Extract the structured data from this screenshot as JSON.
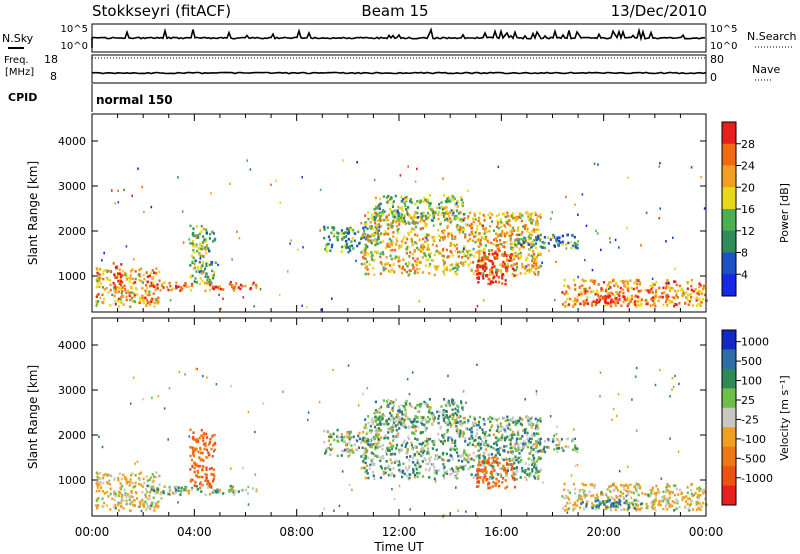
{
  "header": {
    "station": "Stokkseyri (fitACF)",
    "beam": "Beam 15",
    "date": "13/Dec/2010"
  },
  "noise_panel": {
    "left_label": "N.Sky",
    "right_label": "N.Search",
    "ticks": [
      "10^5",
      "10^0"
    ]
  },
  "freq_panel": {
    "left_label_1": "Freq.",
    "left_label_2": "[MHz]",
    "left_ticks": [
      "18",
      "8"
    ],
    "right_label": "Nave",
    "right_ticks": [
      "80",
      "0"
    ]
  },
  "cpid_panel": {
    "label": "CPID",
    "program": "normal 150"
  },
  "colors": {
    "power": [
      "#1428e6",
      "#1e50c8",
      "#2d8c5a",
      "#4caf50",
      "#e8d81c",
      "#f0a020",
      "#f06a14",
      "#e8201c"
    ],
    "velocity": [
      "#1428c8",
      "#2d6ea8",
      "#2e8b57",
      "#6cc04a",
      "#c8c8c0",
      "#f0a020",
      "#f07814",
      "#f05014",
      "#e8201c"
    ]
  },
  "chart_data": [
    {
      "type": "heatmap",
      "quantity": "power",
      "ylabel": "Slant Range [km]",
      "yticks": [
        "1000",
        "2000",
        "3000",
        "4000"
      ],
      "ylim": [
        200,
        4600
      ],
      "xlim": [
        0,
        24
      ],
      "colorbar_label": "Power [dB]",
      "colorbar_ticks": [
        "4",
        "8",
        "12",
        "16",
        "20",
        "24",
        "28"
      ],
      "colorbar_range": [
        0,
        32
      ],
      "regions": [
        {
          "t0": 0.1,
          "t1": 2.6,
          "r0": 300,
          "r1": 1150,
          "v": 22
        },
        {
          "t0": 0.8,
          "t1": 1.2,
          "r0": 600,
          "r1": 1300,
          "v": 30
        },
        {
          "t0": 2.2,
          "t1": 6.5,
          "r0": 650,
          "r1": 850,
          "v": 26
        },
        {
          "t0": 3.8,
          "t1": 4.8,
          "r0": 800,
          "r1": 2100,
          "v": 14
        },
        {
          "t0": 9.0,
          "t1": 11.2,
          "r0": 1500,
          "r1": 2100,
          "v": 12
        },
        {
          "t0": 10.5,
          "t1": 17.5,
          "r0": 1000,
          "r1": 2400,
          "v": 20
        },
        {
          "t0": 11.0,
          "t1": 14.5,
          "r0": 2200,
          "r1": 2800,
          "v": 14
        },
        {
          "t0": 15.0,
          "t1": 16.5,
          "r0": 800,
          "r1": 1500,
          "v": 30
        },
        {
          "t0": 16.5,
          "t1": 19.0,
          "r0": 1600,
          "r1": 1900,
          "v": 10
        },
        {
          "t0": 18.3,
          "t1": 24.0,
          "r0": 300,
          "r1": 900,
          "v": 24
        },
        {
          "t0": 19.0,
          "t1": 21.5,
          "r0": 350,
          "r1": 550,
          "v": 30
        }
      ]
    },
    {
      "type": "heatmap",
      "quantity": "velocity",
      "xlabel": "Time UT",
      "xticks": [
        "00:00",
        "04:00",
        "08:00",
        "12:00",
        "16:00",
        "20:00",
        "00:00"
      ],
      "ylabel": "Slant Range [km]",
      "yticks": [
        "1000",
        "2000",
        "3000",
        "4000"
      ],
      "ylim": [
        200,
        4600
      ],
      "xlim": [
        0,
        24
      ],
      "colorbar_label": "Velocity [m s⁻¹]",
      "colorbar_ticks": [
        "1000",
        "500",
        "100",
        "25",
        "-25",
        "-100",
        "-500",
        "-1000"
      ],
      "regions": [
        {
          "t0": 0.1,
          "t1": 2.6,
          "r0": 300,
          "r1": 1150,
          "v": -100
        },
        {
          "t0": 2.2,
          "t1": 6.5,
          "r0": 650,
          "r1": 850,
          "v": 0
        },
        {
          "t0": 3.8,
          "t1": 4.8,
          "r0": 800,
          "r1": 2100,
          "v": -500
        },
        {
          "t0": 9.0,
          "t1": 11.2,
          "r0": 1500,
          "r1": 2100,
          "v": 0
        },
        {
          "t0": 10.5,
          "t1": 17.5,
          "r0": 1000,
          "r1": 2400,
          "v": 0
        },
        {
          "t0": 11.0,
          "t1": 14.5,
          "r0": 2200,
          "r1": 2800,
          "v": 0
        },
        {
          "t0": 15.0,
          "t1": 16.5,
          "r0": 800,
          "r1": 1500,
          "v": -500
        },
        {
          "t0": 16.5,
          "t1": 19.0,
          "r0": 1600,
          "r1": 1900,
          "v": 0
        },
        {
          "t0": 18.3,
          "t1": 24.0,
          "r0": 300,
          "r1": 900,
          "v": -100
        },
        {
          "t0": 19.0,
          "t1": 21.5,
          "r0": 350,
          "r1": 550,
          "v": 100
        }
      ]
    }
  ]
}
